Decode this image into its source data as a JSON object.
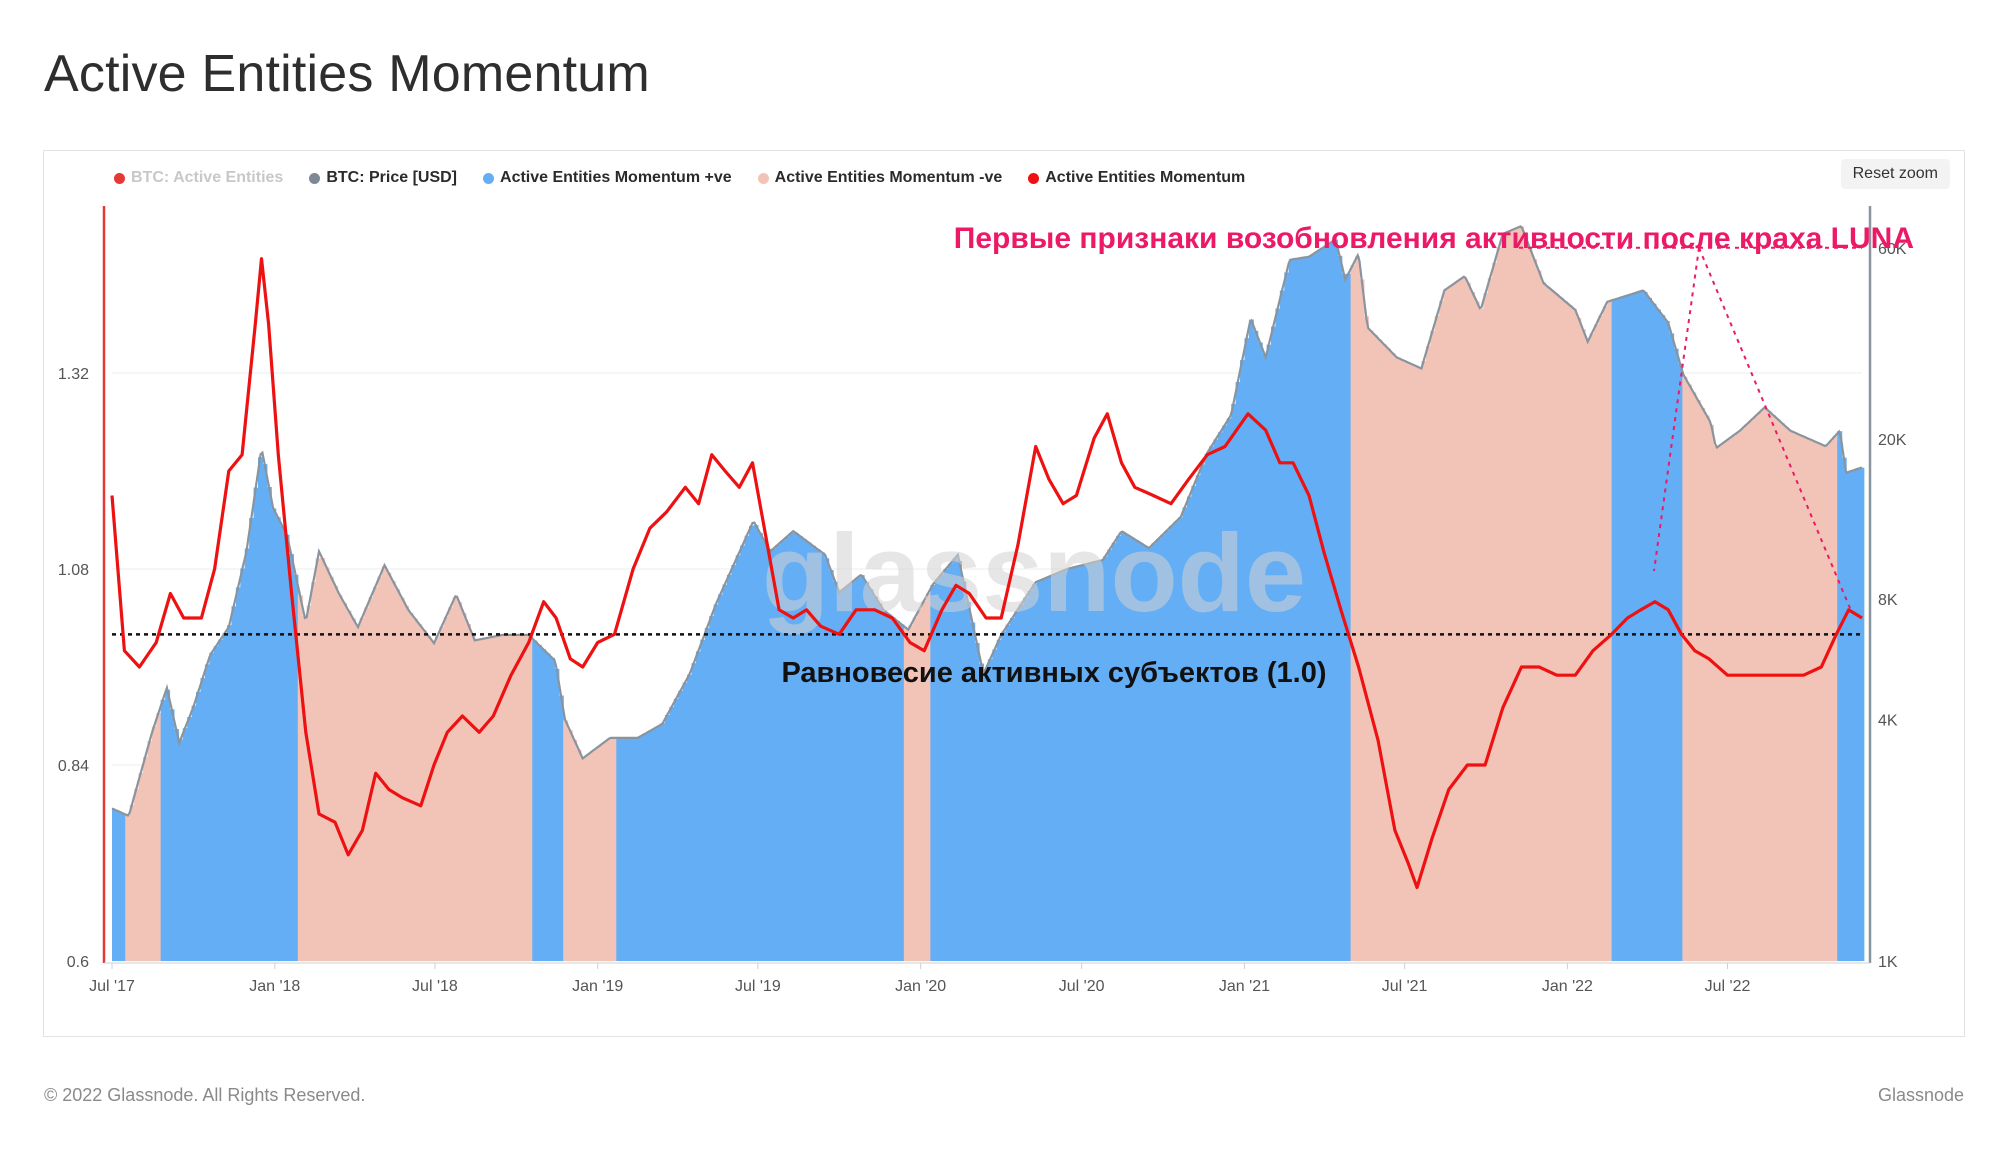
{
  "page": {
    "title": "Active Entities Momentum",
    "copyright": "© 2022 Glassnode. All Rights Reserved.",
    "brand": "Glassnode"
  },
  "toolbar": {
    "reset_zoom_label": "Reset zoom"
  },
  "legend": [
    {
      "label": "BTC: Active Entities",
      "color": "#e53935",
      "dimmed": true
    },
    {
      "label": "BTC: Price [USD]",
      "color": "#7d8a96",
      "dimmed": false
    },
    {
      "label": "Active Entities Momentum +ve",
      "color": "#64aef5",
      "dimmed": false
    },
    {
      "label": "Active Entities Momentum -ve",
      "color": "#f2c4b8",
      "dimmed": false
    },
    {
      "label": "Active Entities Momentum",
      "color": "#ee1111",
      "dimmed": false
    }
  ],
  "annotations": {
    "top_label": "Первые признаки возобновления активности после краха LUNA",
    "top_label_color": "#ec1a66",
    "equilibrium_label": "Равновесие активных субъектов (1.0)"
  },
  "watermark": "glassnode",
  "chart_data": {
    "type": "line",
    "title": "Active Entities Momentum",
    "x_ticks": [
      "Jul '17",
      "Jan '18",
      "Jul '18",
      "Jan '19",
      "Jul '19",
      "Jan '20",
      "Jul '20",
      "Jan '21",
      "Jul '21",
      "Jan '22",
      "Jul '22"
    ],
    "x_range": [
      "2017-07-01",
      "2022-11-30"
    ],
    "y_left": {
      "ticks": [
        0.6,
        0.84,
        1.08,
        1.32
      ],
      "tick_labels": [
        "0.6",
        "0.84",
        "1.08",
        "1.32"
      ],
      "range": [
        0.6,
        1.5
      ]
    },
    "y_right": {
      "scale": "log",
      "ticks": [
        1000,
        4000,
        8000,
        20000,
        60000
      ],
      "tick_labels": [
        "1K",
        "4K",
        "8K",
        "20K",
        "60K"
      ],
      "range": [
        1000,
        68000
      ]
    },
    "grid": true,
    "legend_position": "top-left",
    "equilibrium": 1.0,
    "momentum": [
      [
        "2017-07-01",
        1.17
      ],
      [
        "2017-07-15",
        0.98
      ],
      [
        "2017-08-01",
        0.96
      ],
      [
        "2017-08-20",
        0.99
      ],
      [
        "2017-09-05",
        1.05
      ],
      [
        "2017-09-20",
        1.02
      ],
      [
        "2017-10-10",
        1.02
      ],
      [
        "2017-10-25",
        1.08
      ],
      [
        "2017-11-10",
        1.2
      ],
      [
        "2017-11-25",
        1.22
      ],
      [
        "2017-12-10",
        1.38
      ],
      [
        "2017-12-17",
        1.46
      ],
      [
        "2017-12-25",
        1.38
      ],
      [
        "2018-01-05",
        1.22
      ],
      [
        "2018-01-20",
        1.05
      ],
      [
        "2018-02-05",
        0.88
      ],
      [
        "2018-02-20",
        0.78
      ],
      [
        "2018-03-10",
        0.77
      ],
      [
        "2018-03-25",
        0.73
      ],
      [
        "2018-04-10",
        0.76
      ],
      [
        "2018-04-25",
        0.83
      ],
      [
        "2018-05-10",
        0.81
      ],
      [
        "2018-05-25",
        0.8
      ],
      [
        "2018-06-15",
        0.79
      ],
      [
        "2018-06-30",
        0.84
      ],
      [
        "2018-07-15",
        0.88
      ],
      [
        "2018-08-01",
        0.9
      ],
      [
        "2018-08-20",
        0.88
      ],
      [
        "2018-09-05",
        0.9
      ],
      [
        "2018-09-25",
        0.95
      ],
      [
        "2018-10-15",
        0.99
      ],
      [
        "2018-11-01",
        1.04
      ],
      [
        "2018-11-15",
        1.02
      ],
      [
        "2018-12-01",
        0.97
      ],
      [
        "2018-12-15",
        0.96
      ],
      [
        "2019-01-01",
        0.99
      ],
      [
        "2019-01-20",
        1.0
      ],
      [
        "2019-02-10",
        1.08
      ],
      [
        "2019-03-01",
        1.13
      ],
      [
        "2019-03-20",
        1.15
      ],
      [
        "2019-04-10",
        1.18
      ],
      [
        "2019-04-25",
        1.16
      ],
      [
        "2019-05-10",
        1.22
      ],
      [
        "2019-05-25",
        1.2
      ],
      [
        "2019-06-10",
        1.18
      ],
      [
        "2019-06-25",
        1.21
      ],
      [
        "2019-07-10",
        1.12
      ],
      [
        "2019-07-25",
        1.03
      ],
      [
        "2019-08-10",
        1.02
      ],
      [
        "2019-08-25",
        1.03
      ],
      [
        "2019-09-10",
        1.01
      ],
      [
        "2019-10-01",
        1.0
      ],
      [
        "2019-10-20",
        1.03
      ],
      [
        "2019-11-10",
        1.03
      ],
      [
        "2019-11-30",
        1.02
      ],
      [
        "2019-12-20",
        0.99
      ],
      [
        "2020-01-05",
        0.98
      ],
      [
        "2020-01-25",
        1.03
      ],
      [
        "2020-02-10",
        1.06
      ],
      [
        "2020-02-25",
        1.05
      ],
      [
        "2020-03-15",
        1.02
      ],
      [
        "2020-04-01",
        1.02
      ],
      [
        "2020-04-20",
        1.11
      ],
      [
        "2020-05-10",
        1.23
      ],
      [
        "2020-05-25",
        1.19
      ],
      [
        "2020-06-10",
        1.16
      ],
      [
        "2020-06-25",
        1.17
      ],
      [
        "2020-07-15",
        1.24
      ],
      [
        "2020-07-30",
        1.27
      ],
      [
        "2020-08-15",
        1.21
      ],
      [
        "2020-08-30",
        1.18
      ],
      [
        "2020-09-20",
        1.17
      ],
      [
        "2020-10-10",
        1.16
      ],
      [
        "2020-10-30",
        1.19
      ],
      [
        "2020-11-20",
        1.22
      ],
      [
        "2020-12-10",
        1.23
      ],
      [
        "2021-01-05",
        1.27
      ],
      [
        "2021-01-25",
        1.25
      ],
      [
        "2021-02-10",
        1.21
      ],
      [
        "2021-02-25",
        1.21
      ],
      [
        "2021-03-15",
        1.17
      ],
      [
        "2021-04-01",
        1.1
      ],
      [
        "2021-04-20",
        1.03
      ],
      [
        "2021-05-10",
        0.96
      ],
      [
        "2021-06-01",
        0.87
      ],
      [
        "2021-06-20",
        0.76
      ],
      [
        "2021-07-05",
        0.72
      ],
      [
        "2021-07-15",
        0.69
      ],
      [
        "2021-08-01",
        0.75
      ],
      [
        "2021-08-20",
        0.81
      ],
      [
        "2021-09-10",
        0.84
      ],
      [
        "2021-09-30",
        0.84
      ],
      [
        "2021-10-20",
        0.91
      ],
      [
        "2021-11-10",
        0.96
      ],
      [
        "2021-11-30",
        0.96
      ],
      [
        "2021-12-20",
        0.95
      ],
      [
        "2022-01-10",
        0.95
      ],
      [
        "2022-01-30",
        0.98
      ],
      [
        "2022-02-20",
        1.0
      ],
      [
        "2022-03-10",
        1.02
      ],
      [
        "2022-03-25",
        1.03
      ],
      [
        "2022-04-10",
        1.04
      ],
      [
        "2022-04-25",
        1.03
      ],
      [
        "2022-05-10",
        1.0
      ],
      [
        "2022-05-25",
        0.98
      ],
      [
        "2022-06-10",
        0.97
      ],
      [
        "2022-07-01",
        0.95
      ],
      [
        "2022-07-25",
        0.95
      ],
      [
        "2022-08-15",
        0.95
      ],
      [
        "2022-09-05",
        0.95
      ],
      [
        "2022-09-25",
        0.95
      ],
      [
        "2022-10-15",
        0.96
      ],
      [
        "2022-11-01",
        1.0
      ],
      [
        "2022-11-15",
        1.03
      ],
      [
        "2022-11-30",
        1.02
      ]
    ],
    "price_usd": [
      [
        "2017-07-01",
        2400
      ],
      [
        "2017-07-20",
        2300
      ],
      [
        "2017-08-15",
        3700
      ],
      [
        "2017-09-01",
        4800
      ],
      [
        "2017-09-15",
        3500
      ],
      [
        "2017-10-01",
        4300
      ],
      [
        "2017-10-20",
        5800
      ],
      [
        "2017-11-10",
        6800
      ],
      [
        "2017-11-30",
        10500
      ],
      [
        "2017-12-17",
        19000
      ],
      [
        "2017-12-30",
        13500
      ],
      [
        "2018-01-15",
        11500
      ],
      [
        "2018-02-05",
        7000
      ],
      [
        "2018-02-20",
        10500
      ],
      [
        "2018-03-15",
        8200
      ],
      [
        "2018-04-05",
        6800
      ],
      [
        "2018-05-05",
        9700
      ],
      [
        "2018-06-01",
        7500
      ],
      [
        "2018-06-30",
        6200
      ],
      [
        "2018-07-25",
        8200
      ],
      [
        "2018-08-15",
        6300
      ],
      [
        "2018-09-15",
        6500
      ],
      [
        "2018-10-15",
        6500
      ],
      [
        "2018-11-14",
        5600
      ],
      [
        "2018-11-25",
        4000
      ],
      [
        "2018-12-15",
        3200
      ],
      [
        "2019-01-15",
        3600
      ],
      [
        "2019-02-15",
        3600
      ],
      [
        "2019-03-15",
        3900
      ],
      [
        "2019-04-15",
        5200
      ],
      [
        "2019-05-15",
        7800
      ],
      [
        "2019-06-26",
        12500
      ],
      [
        "2019-07-15",
        10500
      ],
      [
        "2019-08-10",
        11800
      ],
      [
        "2019-09-15",
        10300
      ],
      [
        "2019-10-01",
        8300
      ],
      [
        "2019-10-26",
        9200
      ],
      [
        "2019-11-20",
        7500
      ],
      [
        "2019-12-18",
        6700
      ],
      [
        "2020-01-15",
        8700
      ],
      [
        "2020-02-12",
        10300
      ],
      [
        "2020-03-12",
        5200
      ],
      [
        "2020-04-01",
        6500
      ],
      [
        "2020-05-10",
        8800
      ],
      [
        "2020-06-15",
        9500
      ],
      [
        "2020-07-25",
        10000
      ],
      [
        "2020-08-15",
        11800
      ],
      [
        "2020-09-15",
        10700
      ],
      [
        "2020-10-21",
        12800
      ],
      [
        "2020-11-20",
        18500
      ],
      [
        "2020-12-17",
        23000
      ],
      [
        "2021-01-08",
        40000
      ],
      [
        "2021-01-25",
        32000
      ],
      [
        "2021-02-21",
        56000
      ],
      [
        "2021-03-15",
        57000
      ],
      [
        "2021-04-14",
        63000
      ],
      [
        "2021-04-25",
        50000
      ],
      [
        "2021-05-10",
        58000
      ],
      [
        "2021-05-20",
        38000
      ],
      [
        "2021-06-22",
        32000
      ],
      [
        "2021-07-20",
        30000
      ],
      [
        "2021-08-15",
        47000
      ],
      [
        "2021-09-07",
        51000
      ],
      [
        "2021-09-25",
        42000
      ],
      [
        "2021-10-20",
        65000
      ],
      [
        "2021-11-10",
        68000
      ],
      [
        "2021-12-05",
        49000
      ],
      [
        "2022-01-10",
        42000
      ],
      [
        "2022-01-24",
        35000
      ],
      [
        "2022-02-15",
        44000
      ],
      [
        "2022-03-28",
        47000
      ],
      [
        "2022-04-25",
        39000
      ],
      [
        "2022-05-12",
        29000
      ],
      [
        "2022-06-12",
        22000
      ],
      [
        "2022-06-18",
        19000
      ],
      [
        "2022-07-15",
        21000
      ],
      [
        "2022-08-12",
        24000
      ],
      [
        "2022-09-10",
        21000
      ],
      [
        "2022-10-20",
        19200
      ],
      [
        "2022-11-05",
        21000
      ],
      [
        "2022-11-12",
        16500
      ],
      [
        "2022-11-30",
        17000
      ]
    ]
  }
}
